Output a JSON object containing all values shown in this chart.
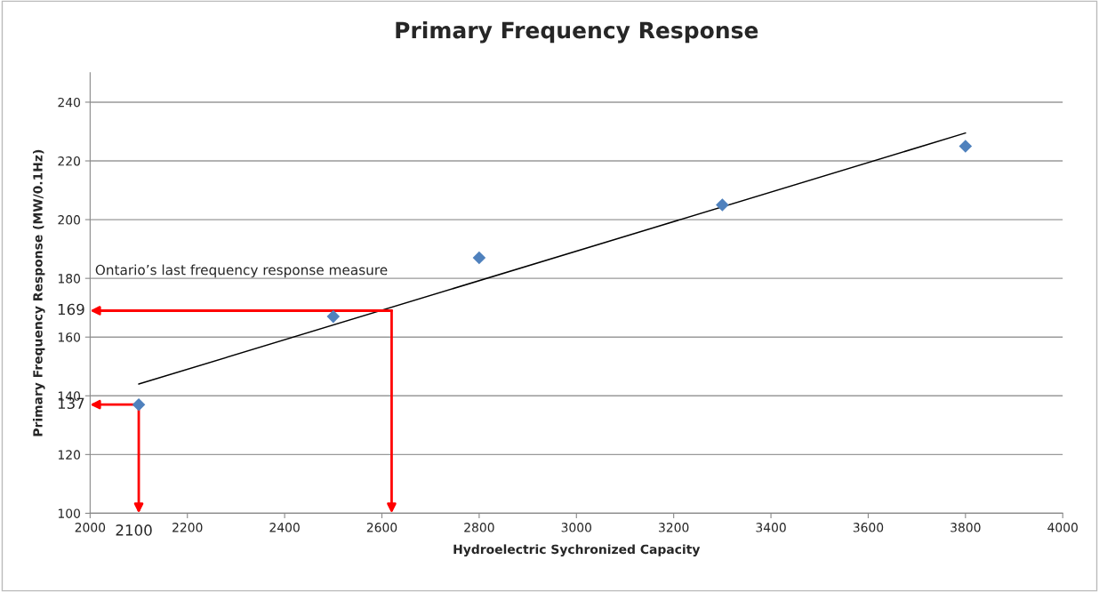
{
  "chart_data": {
    "type": "scatter",
    "title": "Primary Frequency Response",
    "xlabel": "Hydroelectric Sychronized Capacity",
    "ylabel": "Primary Frequency Response (MW/0.1Hz)",
    "series": [
      {
        "color": "#4f81bd",
        "marker": "diamond",
        "x": [
          2100,
          2500,
          2800,
          3300,
          3800
        ],
        "values": [
          137,
          167,
          187,
          205,
          225
        ]
      },
      {
        "type": "line",
        "color": "#000000",
        "marker": "none",
        "line_style": "solid",
        "x": [
          2100,
          3800
        ],
        "values": [
          144,
          229.5
        ]
      }
    ],
    "xlim": [
      2000,
      4000
    ],
    "xticks": [
      2000,
      2200,
      2400,
      2600,
      2800,
      3000,
      3200,
      3400,
      3600,
      3800,
      4000
    ],
    "ylim": [
      100,
      250
    ],
    "yticks": [
      100,
      120,
      140,
      160,
      180,
      200,
      220,
      240
    ],
    "grid": "y",
    "legend": false,
    "annotations": [
      "Ontario’s last frequency response measure",
      {
        "text": "169",
        "x": 2620,
        "y": 169
      },
      {
        "text": "137",
        "x": 2100,
        "y": 137
      },
      "2100"
    ]
  }
}
